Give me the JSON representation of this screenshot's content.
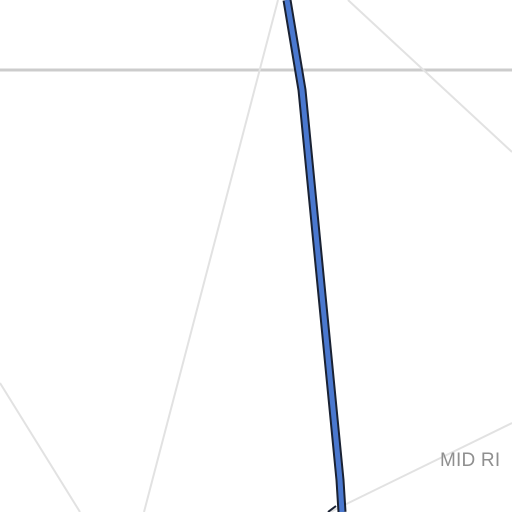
{
  "map": {
    "road_label": "MID RI",
    "colors": {
      "background": "#ffffff",
      "minor_road": "#e2e2e2",
      "major_road": "#cccccc",
      "route_fill": "#4a78cf",
      "route_outline": "#1a2233"
    },
    "features": [
      {
        "name": "horizontal-road",
        "type": "major-road"
      },
      {
        "name": "diagonal-road-left",
        "type": "minor-road"
      },
      {
        "name": "diagonal-road-top-right",
        "type": "minor-road"
      },
      {
        "name": "diagonal-road-bottom-left",
        "type": "minor-road"
      },
      {
        "name": "diagonal-road-bottom-right",
        "type": "minor-road"
      },
      {
        "name": "route-line",
        "type": "highlighted-route"
      }
    ]
  }
}
